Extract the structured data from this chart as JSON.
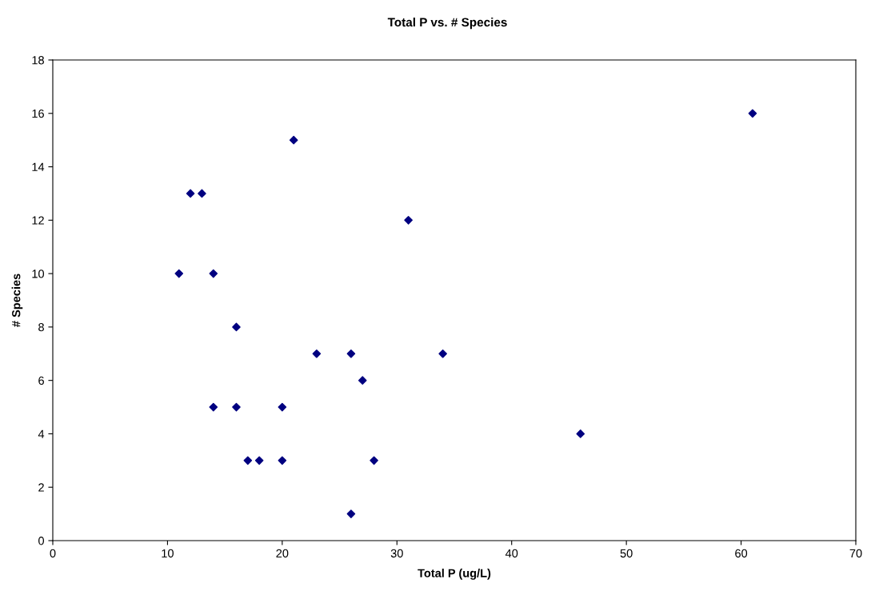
{
  "chart_data": {
    "type": "scatter",
    "title": "Total P vs. # Species",
    "xlabel": "Total P (ug/L)",
    "ylabel": "# Species",
    "series": [
      {
        "color": "#000080",
        "x": [
          11,
          12,
          13,
          14,
          16,
          14,
          16,
          17,
          18,
          20,
          20,
          21,
          23,
          26,
          27,
          28,
          26,
          31,
          34,
          46,
          61
        ],
        "values": [
          10,
          13,
          13,
          10,
          8,
          5,
          5,
          3,
          3,
          5,
          3,
          15,
          7,
          7,
          6,
          3,
          1,
          12,
          7,
          4,
          16
        ]
      }
    ],
    "xlim": [
      0,
      70
    ],
    "xticks": [
      0,
      10,
      20,
      30,
      40,
      50,
      60,
      70
    ],
    "ylim": [
      0,
      18
    ],
    "yticks": [
      0,
      2,
      4,
      6,
      8,
      10,
      12,
      14,
      16,
      18
    ],
    "marker": "diamond",
    "grid": false,
    "legend": false
  }
}
